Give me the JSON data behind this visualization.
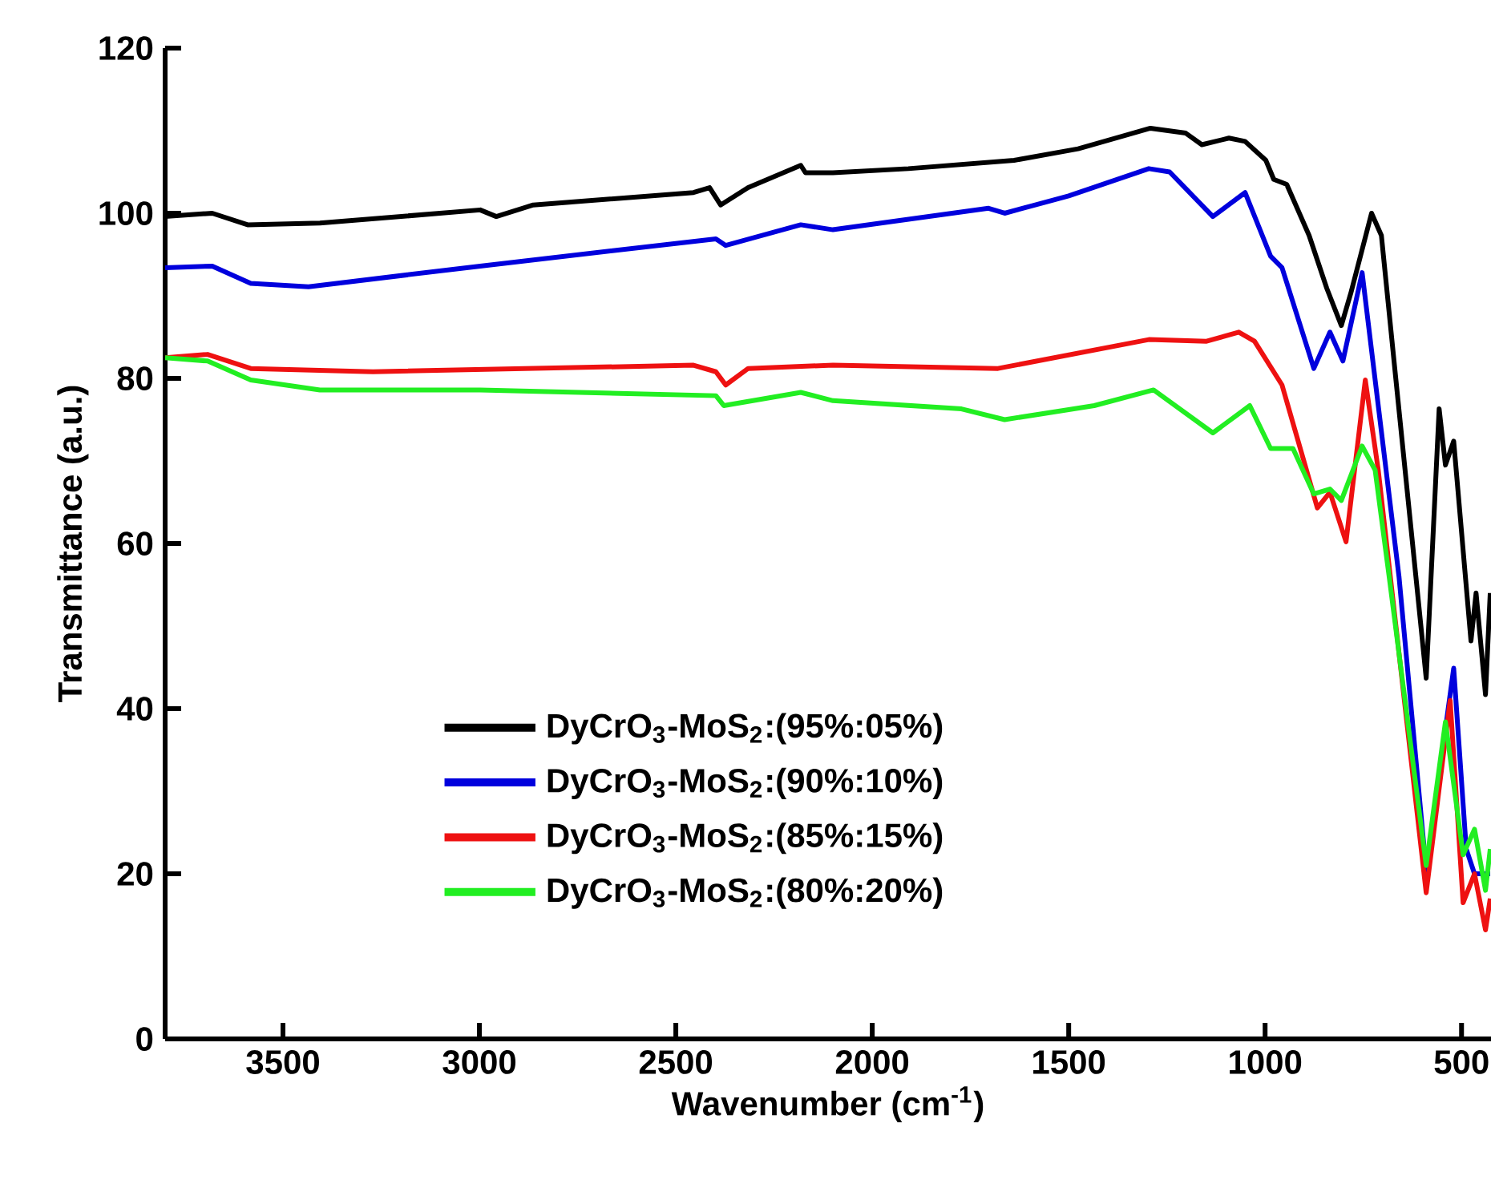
{
  "chart_data": {
    "type": "line",
    "xlabel": "Wavenumber (cm$^{-1}$)",
    "ylabel": "Transmittance (a.u.)",
    "xlim": [
      3800,
      425
    ],
    "ylim": [
      0,
      120
    ],
    "xticks": [
      3500,
      3000,
      2500,
      2000,
      1500,
      1000,
      500
    ],
    "yticks": [
      0,
      20,
      40,
      60,
      80,
      100,
      120
    ],
    "grid": false,
    "legend": "bottom left",
    "marker": "none",
    "line_style": "solid",
    "series": [
      {
        "name": "DyCrO$_{3}$-MoS$_{2}$:(95%:05%)",
        "color": "#000000",
        "x": [
          3800,
          3680,
          3590,
          3406,
          2998,
          2957,
          2863,
          2455,
          2414,
          2386,
          2316,
          2182,
          2170,
          2100,
          1908,
          1639,
          1476,
          1365,
          1292,
          1202,
          1161,
          1092,
          1051,
          998,
          978,
          945,
          888,
          843,
          806,
          782,
          729,
          704,
          671,
          590,
          557,
          541,
          520,
          476,
          463,
          439,
          427
        ],
        "values": [
          99.6,
          100,
          98.6,
          98.8,
          100.4,
          99.6,
          101,
          102.5,
          103.1,
          101,
          103.1,
          105.8,
          104.9,
          104.9,
          105.4,
          106.4,
          107.8,
          109.3,
          110.3,
          109.7,
          108.3,
          109.1,
          108.7,
          106.4,
          104.1,
          103.5,
          97.3,
          90.9,
          86.4,
          90.3,
          100,
          97.3,
          81.7,
          43.7,
          76.3,
          69.5,
          72.4,
          48.2,
          54,
          41.7,
          54
        ]
      },
      {
        "name": "DyCrO$_{3}$-MoS$_{2}$:(90%:10%)",
        "color": "#0000dd",
        "x": [
          3800,
          3680,
          3582,
          3435,
          2998,
          2398,
          2373,
          2182,
          2100,
          1704,
          1663,
          1500,
          1296,
          1243,
          1133,
          1051,
          986,
          957,
          876,
          835,
          802,
          753,
          659,
          590,
          520,
          488,
          467,
          427
        ],
        "values": [
          93.4,
          93.6,
          91.5,
          91.1,
          93.6,
          96.9,
          96.1,
          98.6,
          98,
          100.6,
          100,
          102.1,
          105.4,
          105,
          99.6,
          102.5,
          94.8,
          93.4,
          81.2,
          85.6,
          82.1,
          92.8,
          55.9,
          20.4,
          44.9,
          23,
          20,
          20
        ]
      },
      {
        "name": "DyCrO$_{3}$-MoS$_{2}$:(85%:15%)",
        "color": "#ee1111",
        "x": [
          3800,
          3692,
          3582,
          3271,
          2455,
          2398,
          2373,
          2316,
          2100,
          1680,
          1296,
          1149,
          1067,
          1027,
          957,
          867,
          835,
          794,
          745,
          712,
          590,
          529,
          496,
          467,
          439,
          427
        ],
        "values": [
          82.5,
          82.9,
          81.2,
          80.8,
          81.6,
          80.8,
          79.2,
          81.2,
          81.6,
          81.2,
          84.7,
          84.5,
          85.6,
          84.5,
          79.2,
          64.3,
          66.2,
          60.2,
          79.8,
          68.9,
          17.7,
          41,
          16.5,
          20,
          13.2,
          17
        ]
      },
      {
        "name": "DyCrO$_{3}$-MoS$_{2}$:(80%:20%)",
        "color": "#22ee22",
        "x": [
          3800,
          3692,
          3582,
          3406,
          2998,
          2398,
          2378,
          2182,
          2100,
          1773,
          1663,
          1435,
          1284,
          1133,
          1039,
          986,
          929,
          876,
          835,
          806,
          753,
          720,
          684,
          590,
          541,
          496,
          467,
          439,
          427
        ],
        "values": [
          82.5,
          82.1,
          79.8,
          78.6,
          78.6,
          77.9,
          76.7,
          78.3,
          77.3,
          76.3,
          75,
          76.7,
          78.6,
          73.4,
          76.7,
          71.5,
          71.5,
          66,
          66.6,
          65.2,
          71.8,
          68.9,
          55.9,
          21,
          38.4,
          22.3,
          25.4,
          18,
          23
        ]
      }
    ]
  }
}
